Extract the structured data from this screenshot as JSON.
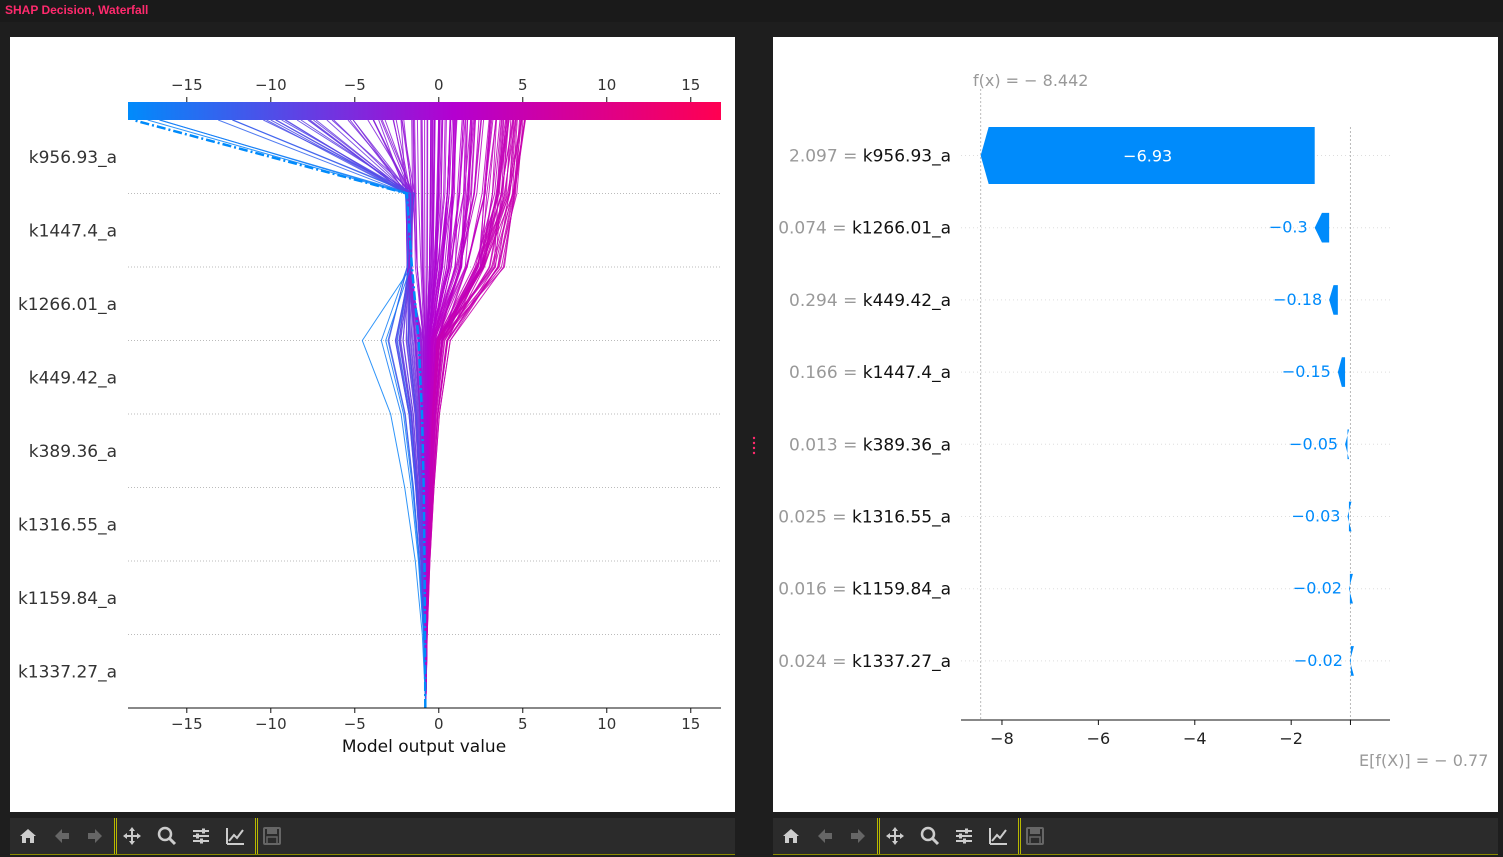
{
  "window": {
    "title": "SHAP Decision, Waterfall"
  },
  "colors": {
    "shap_blue": "#008bfb",
    "shap_pink": "#ff0051",
    "purple_mid": "#b400d0",
    "grey_text": "#999999",
    "toolbar_bg": "#2b2b2b",
    "separator": "#b8b800"
  },
  "toolbar": {
    "icons": [
      "home-icon",
      "back-arrow-icon",
      "forward-arrow-icon",
      "pan-icon",
      "zoom-icon",
      "configure-subplots-icon",
      "edit-axis-icon",
      "save-icon"
    ]
  },
  "chart_data": [
    {
      "type": "decision",
      "xlabel": "Model output value",
      "xlim": [
        -18.5,
        16.8
      ],
      "xticks": [
        -15,
        -10,
        -5,
        0,
        5,
        10,
        15
      ],
      "xtick_labels": [
        "−15",
        "−10",
        "−5",
        "0",
        "5",
        "10",
        "15"
      ],
      "colorbar_range": [
        -18.5,
        16.8
      ],
      "base_value": -0.77,
      "features": [
        "k956.93_a",
        "k1447.4_a",
        "k1266.01_a",
        "k449.42_a",
        "k389.36_a",
        "k1316.55_a",
        "k1159.84_a",
        "k1337.27_a"
      ],
      "grid": "dotted horizontal",
      "representative_paths": {
        "most_negative_dashdot": [
          -0.8,
          -0.82,
          -0.85,
          -0.9,
          -1.0,
          -1.2,
          -1.6,
          -1.9,
          -18.2
        ],
        "spread_top": [
          -18.0,
          -12.0,
          -7.0,
          -3.0,
          0.0,
          3.0,
          4.5,
          5.0
        ]
      }
    },
    {
      "type": "waterfall",
      "fx_label": "f(x) = − 8.442",
      "ex_label": "E[f(X)] = − 0.77",
      "fx": -8.442,
      "base_value": -0.77,
      "xlim": [
        -8.85,
        0.05
      ],
      "xticks": [
        -8,
        -6,
        -4,
        -2
      ],
      "xtick_labels": [
        "−8",
        "−6",
        "−4",
        "−2"
      ],
      "rows": [
        {
          "feature_value": "2.097",
          "feature": "k956.93_a",
          "label": "−6.93",
          "value": -6.93
        },
        {
          "feature_value": "0.074",
          "feature": "k1266.01_a",
          "label": "−0.3",
          "value": -0.3
        },
        {
          "feature_value": "0.294",
          "feature": "k449.42_a",
          "label": "−0.18",
          "value": -0.18
        },
        {
          "feature_value": "0.166",
          "feature": "k1447.4_a",
          "label": "−0.15",
          "value": -0.15
        },
        {
          "feature_value": "0.013",
          "feature": "k389.36_a",
          "label": "−0.05",
          "value": -0.05
        },
        {
          "feature_value": "0.025",
          "feature": "k1316.55_a",
          "label": "−0.03",
          "value": -0.03
        },
        {
          "feature_value": "0.016",
          "feature": "k1159.84_a",
          "label": "−0.02",
          "value": -0.02
        },
        {
          "feature_value": "0.024",
          "feature": "k1337.27_a",
          "label": "−0.02",
          "value": -0.02
        }
      ]
    }
  ]
}
